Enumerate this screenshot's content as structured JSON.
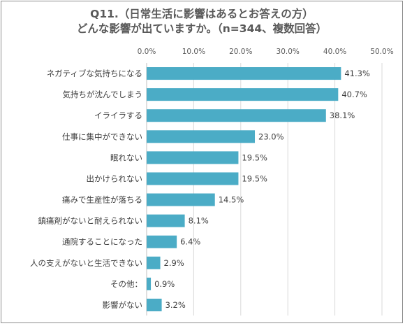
{
  "chart_data": {
    "type": "bar",
    "orientation": "horizontal",
    "title": "Q11.（日常生活に影響はあるとお答えの方）",
    "subtitle": "どんな影響が出ていますか。（n=344、複数回答）",
    "categories": [
      "ネガティブな気持ちになる",
      "気持ちが沈んでしまう",
      "イライラする",
      "仕事に集中ができない",
      "眠れない",
      "出かけられない",
      "痛みで生産性が落ちる",
      "鎮痛剤がないと耐えられない",
      "通院することになった",
      "人の支えがないと生活できない",
      "その他：",
      "影響がない"
    ],
    "values": [
      41.3,
      40.7,
      38.1,
      23.0,
      19.5,
      19.5,
      14.5,
      8.1,
      6.4,
      2.9,
      0.9,
      3.2
    ],
    "data_labels": [
      "41.3%",
      "40.7%",
      "38.1%",
      "23.0%",
      "19.5%",
      "19.5%",
      "14.5%",
      "8.1%",
      "6.4%",
      "2.9%",
      "0.9%",
      "3.2%"
    ],
    "x_ticks": [
      "0.0%",
      "10.0%",
      "20.0%",
      "30.0%",
      "40.0%",
      "50.0%"
    ],
    "xlim": [
      0,
      50
    ],
    "xlabel": "",
    "ylabel": "",
    "axis_position": "top",
    "grid": true,
    "legend": "none",
    "bar_color": "#4bacc6"
  }
}
